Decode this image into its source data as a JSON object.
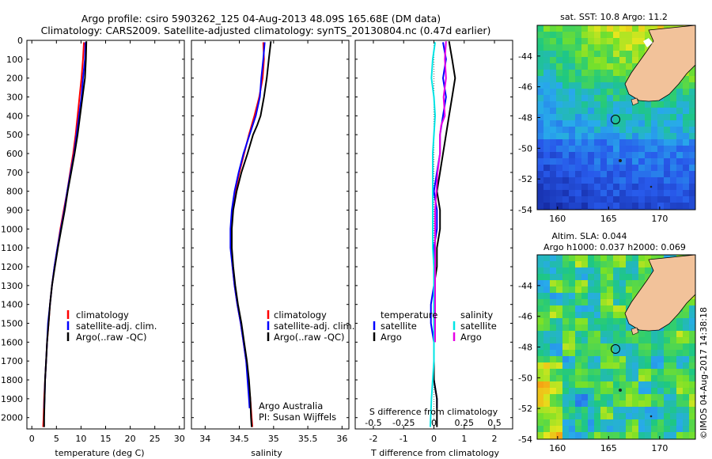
{
  "title": {
    "line1": "Argo profile: csiro 5903262_125 04-Aug-2013 48.09S 165.68E (DM data)",
    "line2": "Climatology: CARS2009. Satellite-adjusted climatology: synTS_20130804.nc (0.47d earlier)"
  },
  "credit": {
    "line1": "Argo Australia",
    "line2": "PI: Susan Wijffels"
  },
  "watermark": "©IMOS 04-Aug-2017 14:38:18",
  "colors": {
    "climatology": "#ff0000",
    "satellite": "#0000ff",
    "argo": "#000000",
    "salinity_satellite": "#00e5e5",
    "salinity_argo": "#e600e6",
    "land": "#f2c29a"
  },
  "chart_data": [
    {
      "type": "line",
      "xlabel": "temperature (deg C)",
      "ylabel": "",
      "xlim": [
        -1,
        31
      ],
      "ylim": [
        2060,
        0
      ],
      "xticks": [
        "0",
        "5",
        "10",
        "15",
        "20",
        "25",
        "30"
      ],
      "yticks": [
        "0",
        "100",
        "200",
        "300",
        "400",
        "500",
        "600",
        "700",
        "800",
        "900",
        "1000",
        "1100",
        "1200",
        "1300",
        "1400",
        "1500",
        "1600",
        "1700",
        "1800",
        "1900",
        "2000"
      ],
      "legend": [
        "climatology",
        "satellite-adj. clim.",
        "Argo(..raw -QC)"
      ],
      "series": [
        {
          "name": "climatology",
          "points": [
            [
              10.6,
              10
            ],
            [
              10.4,
              100
            ],
            [
              10.1,
              200
            ],
            [
              9.7,
              300
            ],
            [
              9.3,
              400
            ],
            [
              8.9,
              500
            ],
            [
              8.4,
              600
            ],
            [
              7.8,
              700
            ],
            [
              7.2,
              800
            ],
            [
              6.5,
              900
            ],
            [
              5.8,
              1000
            ],
            [
              5.2,
              1100
            ],
            [
              4.6,
              1200
            ],
            [
              4.1,
              1300
            ],
            [
              3.7,
              1400
            ],
            [
              3.4,
              1500
            ],
            [
              3.1,
              1600
            ],
            [
              2.9,
              1700
            ],
            [
              2.7,
              1800
            ],
            [
              2.5,
              1900
            ],
            [
              2.4,
              2000
            ],
            [
              2.3,
              2050
            ]
          ]
        },
        {
          "name": "satellite-adj. clim.",
          "points": [
            [
              10.9,
              10
            ],
            [
              10.8,
              100
            ],
            [
              10.4,
              200
            ],
            [
              10.1,
              300
            ],
            [
              9.6,
              400
            ],
            [
              9.1,
              500
            ],
            [
              8.6,
              600
            ],
            [
              7.9,
              700
            ],
            [
              7.2,
              800
            ],
            [
              6.6,
              900
            ],
            [
              5.9,
              1000
            ],
            [
              5.2,
              1100
            ],
            [
              4.6,
              1200
            ],
            [
              4.1,
              1300
            ],
            [
              3.7,
              1400
            ],
            [
              3.3,
              1500
            ],
            [
              3.1,
              1600
            ],
            [
              2.9,
              1700
            ],
            [
              2.7,
              1800
            ],
            [
              2.6,
              1900
            ],
            [
              2.5,
              1950
            ]
          ]
        },
        {
          "name": "Argo(..raw -QC)",
          "points": [
            [
              11.1,
              5
            ],
            [
              11.0,
              100
            ],
            [
              10.8,
              200
            ],
            [
              10.3,
              300
            ],
            [
              9.8,
              400
            ],
            [
              9.3,
              500
            ],
            [
              8.7,
              600
            ],
            [
              8.0,
              700
            ],
            [
              7.3,
              800
            ],
            [
              6.7,
              900
            ],
            [
              6.0,
              1000
            ],
            [
              5.3,
              1100
            ],
            [
              4.7,
              1200
            ],
            [
              4.1,
              1300
            ],
            [
              3.7,
              1400
            ],
            [
              3.4,
              1500
            ],
            [
              3.1,
              1600
            ],
            [
              2.9,
              1700
            ],
            [
              2.7,
              1800
            ],
            [
              2.6,
              1900
            ],
            [
              2.5,
              2000
            ],
            [
              2.5,
              2050
            ]
          ]
        }
      ]
    },
    {
      "type": "line",
      "xlabel": "salinity",
      "ylabel": "",
      "xlim": [
        33.8,
        36.1
      ],
      "ylim": [
        2060,
        0
      ],
      "xticks": [
        "34",
        "34.5",
        "35",
        "35.5",
        "36"
      ],
      "legend": [
        "climatology",
        "satellite-adj. clim.",
        "Argo(..raw -QC)"
      ],
      "series": [
        {
          "name": "climatology",
          "points": [
            [
              34.85,
              10
            ],
            [
              34.86,
              100
            ],
            [
              34.84,
              200
            ],
            [
              34.79,
              300
            ],
            [
              34.72,
              400
            ],
            [
              34.64,
              500
            ],
            [
              34.57,
              600
            ],
            [
              34.5,
              700
            ],
            [
              34.44,
              800
            ],
            [
              34.4,
              900
            ],
            [
              34.38,
              1000
            ],
            [
              34.38,
              1100
            ],
            [
              34.4,
              1200
            ],
            [
              34.43,
              1300
            ],
            [
              34.47,
              1400
            ],
            [
              34.52,
              1500
            ],
            [
              34.56,
              1600
            ],
            [
              34.6,
              1700
            ],
            [
              34.63,
              1800
            ],
            [
              34.66,
              1900
            ],
            [
              34.68,
              2000
            ],
            [
              34.69,
              2050
            ]
          ]
        },
        {
          "name": "satellite-adj. clim.",
          "points": [
            [
              34.87,
              10
            ],
            [
              34.85,
              100
            ],
            [
              34.82,
              200
            ],
            [
              34.8,
              300
            ],
            [
              34.74,
              400
            ],
            [
              34.65,
              500
            ],
            [
              34.56,
              600
            ],
            [
              34.49,
              700
            ],
            [
              34.43,
              800
            ],
            [
              34.39,
              900
            ],
            [
              34.37,
              1000
            ],
            [
              34.37,
              1100
            ],
            [
              34.4,
              1200
            ],
            [
              34.43,
              1300
            ],
            [
              34.47,
              1400
            ],
            [
              34.52,
              1500
            ],
            [
              34.56,
              1600
            ],
            [
              34.6,
              1700
            ],
            [
              34.62,
              1800
            ],
            [
              34.64,
              1900
            ],
            [
              34.65,
              1950
            ]
          ]
        },
        {
          "name": "Argo(..raw -QC)",
          "points": [
            [
              34.96,
              5
            ],
            [
              34.93,
              100
            ],
            [
              34.9,
              200
            ],
            [
              34.86,
              300
            ],
            [
              34.81,
              400
            ],
            [
              34.76,
              450
            ],
            [
              34.7,
              500
            ],
            [
              34.62,
              600
            ],
            [
              34.53,
              700
            ],
            [
              34.46,
              800
            ],
            [
              34.41,
              900
            ],
            [
              34.39,
              1000
            ],
            [
              34.39,
              1100
            ],
            [
              34.41,
              1200
            ],
            [
              34.44,
              1300
            ],
            [
              34.48,
              1400
            ],
            [
              34.53,
              1500
            ],
            [
              34.57,
              1600
            ],
            [
              34.61,
              1700
            ],
            [
              34.64,
              1800
            ],
            [
              34.66,
              1900
            ],
            [
              34.67,
              2000
            ],
            [
              34.68,
              2050
            ]
          ]
        }
      ]
    },
    {
      "type": "line",
      "xlabel": "T difference from climatology",
      "xlabel2": "S difference from climatology",
      "xlim": [
        -2.6,
        2.6
      ],
      "ylim": [
        2060,
        0
      ],
      "xticks": [
        "-2",
        "-1",
        "0",
        "1",
        "2"
      ],
      "xticks_top": [
        "-0.5",
        "-0.25",
        "0",
        "0.25",
        "0.5"
      ],
      "legend_temperature": {
        "title": "temperature",
        "entries": [
          "satellite",
          "Argo"
        ]
      },
      "legend_salinity": {
        "title": "salinity",
        "entries": [
          "satellite",
          "Argo"
        ]
      },
      "series": [
        {
          "name": "satellite",
          "group": "temperature",
          "points": [
            [
              0.3,
              10
            ],
            [
              0.4,
              100
            ],
            [
              0.3,
              200
            ],
            [
              0.4,
              300
            ],
            [
              0.3,
              400
            ],
            [
              0.2,
              500
            ],
            [
              0.2,
              600
            ],
            [
              0.1,
              700
            ],
            [
              0.0,
              800
            ],
            [
              0.1,
              900
            ],
            [
              0.1,
              1000
            ],
            [
              0.0,
              1100
            ],
            [
              0.0,
              1200
            ],
            [
              0.0,
              1300
            ],
            [
              -0.1,
              1400
            ],
            [
              -0.1,
              1500
            ],
            [
              0.0,
              1600
            ],
            [
              0.0,
              1700
            ],
            [
              0.0,
              1800
            ],
            [
              0.1,
              1900
            ],
            [
              0.1,
              1950
            ]
          ]
        },
        {
          "name": "Argo",
          "group": "temperature",
          "points": [
            [
              0.5,
              5
            ],
            [
              0.6,
              100
            ],
            [
              0.7,
              200
            ],
            [
              0.6,
              300
            ],
            [
              0.5,
              400
            ],
            [
              0.4,
              500
            ],
            [
              0.3,
              600
            ],
            [
              0.2,
              700
            ],
            [
              0.1,
              800
            ],
            [
              0.2,
              900
            ],
            [
              0.2,
              1000
            ],
            [
              0.1,
              1100
            ],
            [
              0.1,
              1200
            ],
            [
              0.0,
              1300
            ],
            [
              0.0,
              1400
            ],
            [
              0.0,
              1500
            ],
            [
              0.0,
              1600
            ],
            [
              0.0,
              1700
            ],
            [
              0.0,
              1800
            ],
            [
              0.1,
              1900
            ],
            [
              0.1,
              2000
            ],
            [
              0.1,
              2050
            ]
          ]
        },
        {
          "name": "satellite",
          "group": "salinity",
          "points": [
            [
              0.01,
              10
            ],
            [
              -0.01,
              100
            ],
            [
              -0.02,
              200
            ],
            [
              0.0,
              300
            ],
            [
              0.01,
              400
            ],
            [
              0.0,
              500
            ],
            [
              -0.01,
              600
            ],
            [
              -0.01,
              700
            ],
            [
              -0.01,
              800
            ],
            [
              -0.01,
              900
            ],
            [
              -0.01,
              1000
            ],
            [
              -0.01,
              1100
            ],
            [
              0.0,
              1200
            ],
            [
              0.0,
              1300
            ],
            [
              0.0,
              1400
            ],
            [
              0.0,
              1500
            ],
            [
              0.0,
              1600
            ],
            [
              0.0,
              1700
            ],
            [
              -0.01,
              1800
            ],
            [
              -0.02,
              1900
            ],
            [
              -0.03,
              2050
            ]
          ]
        },
        {
          "name": "Argo",
          "group": "salinity",
          "points": [
            [
              0.1,
              5
            ],
            [
              0.09,
              100
            ],
            [
              0.1,
              200
            ],
            [
              0.08,
              300
            ],
            [
              0.09,
              400
            ],
            [
              0.06,
              450
            ],
            [
              0.05,
              500
            ],
            [
              0.05,
              600
            ],
            [
              0.03,
              700
            ],
            [
              0.02,
              800
            ],
            [
              0.01,
              900
            ],
            [
              0.01,
              1000
            ],
            [
              0.01,
              1100
            ],
            [
              0.01,
              1200
            ],
            [
              0.01,
              1300
            ],
            [
              0.01,
              1400
            ],
            [
              0.01,
              1500
            ],
            [
              0.01,
              1600
            ]
          ]
        }
      ]
    },
    {
      "type": "heatmap",
      "title": "sat. SST: 10.8 Argo: 11.2",
      "xlim": [
        158,
        173.5
      ],
      "ylim": [
        -54,
        -42
      ],
      "xticks": [
        "160",
        "165",
        "170"
      ],
      "yticks": [
        "-44",
        "-46",
        "-48",
        "-50",
        "-52",
        "-54"
      ],
      "argo_position": [
        165.68,
        -48.09
      ]
    },
    {
      "type": "heatmap",
      "title": "Altim. SLA: 0.044",
      "subtitle": "Argo h1000: 0.037 h2000: 0.069",
      "xlim": [
        158,
        173.5
      ],
      "ylim": [
        -54,
        -42
      ],
      "xticks": [
        "160",
        "165",
        "170"
      ],
      "yticks": [
        "-44",
        "-46",
        "-48",
        "-50",
        "-52",
        "-54"
      ],
      "argo_position": [
        165.68,
        -48.09
      ]
    }
  ]
}
